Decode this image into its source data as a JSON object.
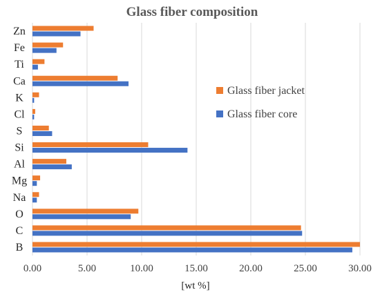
{
  "chart_data": {
    "type": "bar",
    "orientation": "horizontal",
    "title": "Glass fiber composition",
    "xlabel": "[wt %]",
    "ylabel": "",
    "xlim": [
      0,
      30
    ],
    "xticks": [
      "0.00",
      "5.00",
      "10.00",
      "15.00",
      "20.00",
      "25.00",
      "30.00"
    ],
    "categories": [
      "Zn",
      "Fe",
      "Ti",
      "Ca",
      "K",
      "Cl",
      "S",
      "Si",
      "Al",
      "Mg",
      "Na",
      "O",
      "C",
      "B"
    ],
    "series": [
      {
        "name": "Glass fiber jacket",
        "color": "#ED7D31",
        "values": [
          5.6,
          2.8,
          1.1,
          7.8,
          0.6,
          0.25,
          1.5,
          10.6,
          3.1,
          0.7,
          0.6,
          9.7,
          24.6,
          30.0
        ]
      },
      {
        "name": "Glass fiber core",
        "color": "#4472C4",
        "values": [
          4.4,
          2.2,
          0.5,
          8.8,
          0.15,
          0.15,
          1.8,
          14.2,
          3.6,
          0.4,
          0.4,
          9.0,
          24.7,
          29.3
        ]
      }
    ],
    "grid": true,
    "legend_position": "right-middle"
  }
}
